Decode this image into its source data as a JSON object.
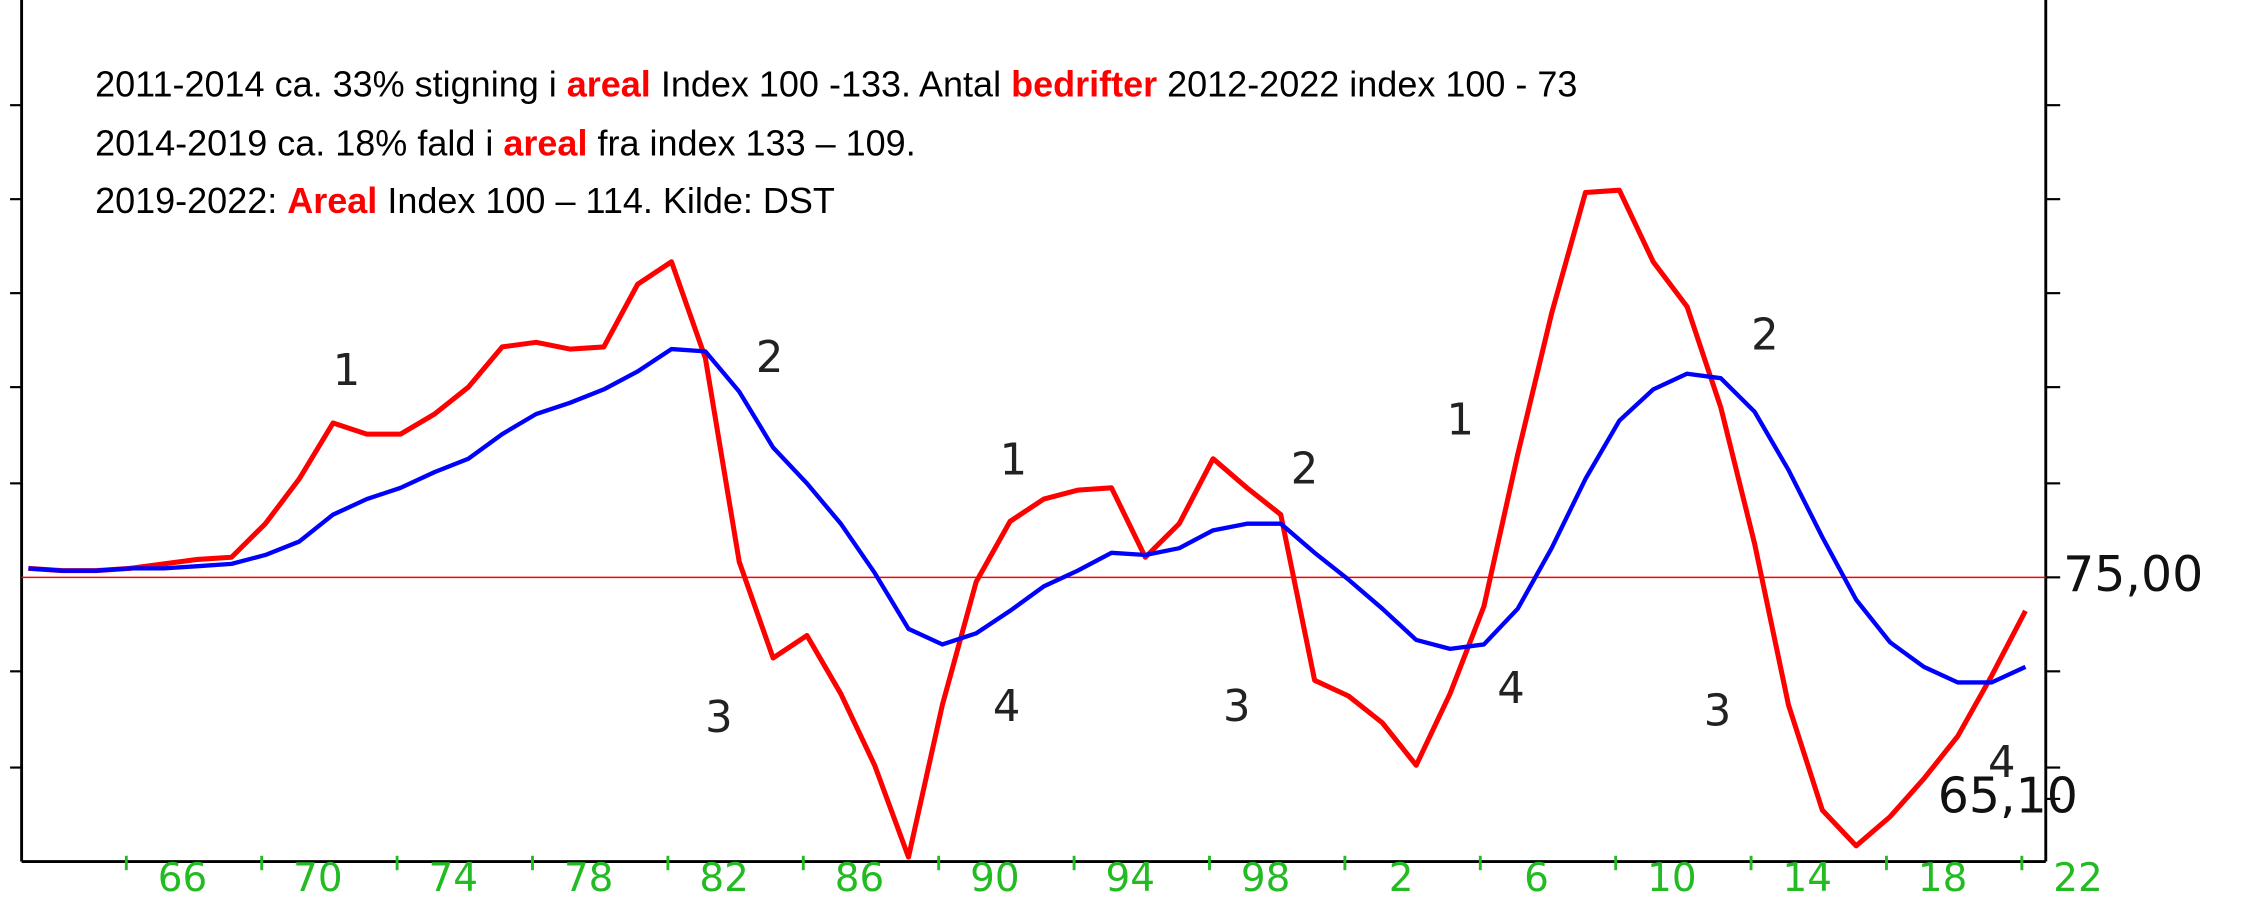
{
  "chart_data": {
    "type": "line",
    "annotation_lines": [
      [
        {
          "text": "2011-2014 ca. 33% stigning i ",
          "highlight": false
        },
        {
          "text": "areal",
          "highlight": true
        },
        {
          "text": " Index 100 -133. Antal ",
          "highlight": false
        },
        {
          "text": "bedrifter",
          "highlight": true
        },
        {
          "text": " 2012-2022 index 100 - 73",
          "highlight": false
        }
      ],
      [
        {
          "text": "2014-2019 ca. 18% fald i ",
          "highlight": false
        },
        {
          "text": "areal",
          "highlight": true
        },
        {
          "text": " fra index 133 – 109.",
          "highlight": false
        }
      ],
      [
        {
          "text": "2019-2022: ",
          "highlight": false
        },
        {
          "text": "Areal",
          "highlight": true
        },
        {
          "text": " Index 100 – 114. Kilde: DST",
          "highlight": false
        }
      ]
    ],
    "x": [
      1962,
      1963,
      1964,
      1965,
      1966,
      1967,
      1968,
      1969,
      1970,
      1971,
      1972,
      1973,
      1974,
      1975,
      1976,
      1977,
      1978,
      1979,
      1980,
      1981,
      1982,
      1983,
      1984,
      1985,
      1986,
      1987,
      1988,
      1989,
      1990,
      1991,
      1992,
      1993,
      1994,
      1995,
      1996,
      1997,
      1998,
      1999,
      2000,
      2001,
      2002,
      2003,
      2004,
      2005,
      2006,
      2007,
      2008,
      2009,
      2010,
      2011,
      2012,
      2013,
      2014,
      2015,
      2016,
      2017,
      2018,
      2019,
      2020,
      2021
    ],
    "series": [
      {
        "color": "#ff0000",
        "values": [
          75.4,
          75.3,
          75.3,
          75.4,
          75.6,
          75.8,
          75.9,
          77.4,
          79.4,
          81.9,
          81.4,
          81.4,
          82.3,
          83.5,
          85.3,
          85.5,
          85.2,
          85.3,
          88.1,
          89.1,
          84.8,
          75.7,
          71.4,
          72.4,
          69.8,
          66.6,
          62.5,
          69.3,
          74.8,
          77.5,
          78.5,
          78.9,
          79.0,
          75.9,
          77.4,
          80.3,
          79.0,
          77.8,
          70.4,
          69.7,
          68.5,
          66.6,
          69.8,
          73.7,
          80.5,
          86.8,
          92.2,
          92.3,
          89.1,
          87.1,
          82.6,
          76.5,
          69.3,
          64.6,
          63.0,
          64.3,
          66.0,
          67.9,
          70.6,
          73.5
        ]
      },
      {
        "color": "#0000ff",
        "values": [
          75.4,
          75.3,
          75.3,
          75.4,
          75.4,
          75.5,
          75.6,
          76.0,
          76.6,
          77.8,
          78.5,
          79.0,
          79.7,
          80.3,
          81.4,
          82.3,
          82.8,
          83.4,
          84.2,
          85.2,
          85.1,
          83.3,
          80.8,
          79.2,
          77.4,
          75.2,
          72.7,
          72.0,
          72.5,
          73.5,
          74.6,
          75.3,
          76.1,
          76.0,
          76.3,
          77.1,
          77.4,
          77.4,
          76.1,
          74.9,
          73.6,
          72.2,
          71.8,
          72.0,
          73.6,
          76.3,
          79.4,
          82.0,
          83.4,
          84.1,
          83.9,
          82.4,
          79.8,
          76.8,
          74.0,
          72.1,
          71.0,
          70.3,
          70.3,
          71.0
        ]
      }
    ],
    "xlim": [
      1961.8,
      2021.6
    ],
    "ylim": [
      62.3,
      100.8
    ],
    "xticks": [
      {
        "value": 1966,
        "label": "66"
      },
      {
        "value": 1970,
        "label": "70"
      },
      {
        "value": 1974,
        "label": "74"
      },
      {
        "value": 1978,
        "label": "78"
      },
      {
        "value": 1982,
        "label": "82"
      },
      {
        "value": 1986,
        "label": "86"
      },
      {
        "value": 1990,
        "label": "90"
      },
      {
        "value": 1994,
        "label": "94"
      },
      {
        "value": 1998,
        "label": "98"
      },
      {
        "value": 2002,
        "label": "2"
      },
      {
        "value": 2006,
        "label": "6"
      },
      {
        "value": 2010,
        "label": "10"
      },
      {
        "value": 2014,
        "label": "14"
      },
      {
        "value": 2018,
        "label": "18"
      },
      {
        "value": 2022,
        "label": "22"
      }
    ],
    "yticks": [
      {
        "value": 75,
        "label": "75,00"
      },
      {
        "value": 65.1,
        "label": "65,10"
      }
    ],
    "minor_yticks": [
      96.1,
      91.9,
      87.7,
      83.5,
      79.2,
      70.8,
      66.5
    ],
    "reference_line": {
      "value": 75,
      "color": "#ff0000"
    },
    "cycle_labels": [
      {
        "text": "1",
        "x": 1971.4,
        "y": 84.1
      },
      {
        "text": "2",
        "x": 1983.9,
        "y": 84.7
      },
      {
        "text": "3",
        "x": 1982.4,
        "y": 68.6
      },
      {
        "text": "4",
        "x": 1990.9,
        "y": 69.1
      },
      {
        "text": "1",
        "x": 1991.1,
        "y": 80.1
      },
      {
        "text": "2",
        "x": 1999.7,
        "y": 79.7
      },
      {
        "text": "3",
        "x": 1997.7,
        "y": 69.1
      },
      {
        "text": "4",
        "x": 2005.8,
        "y": 69.9
      },
      {
        "text": "1",
        "x": 2004.3,
        "y": 81.9
      },
      {
        "text": "2",
        "x": 2013.3,
        "y": 85.7
      },
      {
        "text": "3",
        "x": 2011.9,
        "y": 68.9
      },
      {
        "text": "4",
        "x": 2020.3,
        "y": 66.6
      }
    ]
  }
}
